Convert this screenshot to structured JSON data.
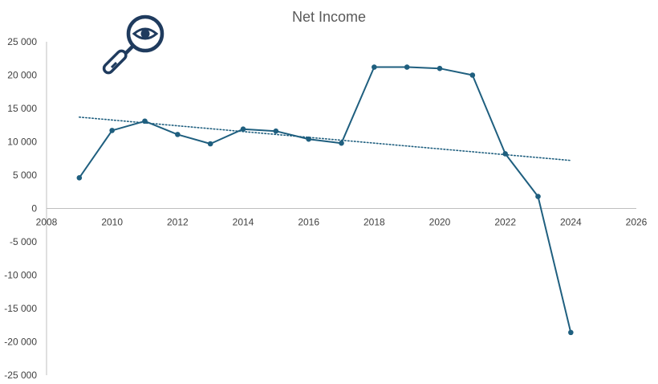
{
  "chart_data": {
    "type": "scatter",
    "title": "Net Income",
    "xlabel": "",
    "ylabel": "",
    "xlim": [
      2008,
      2026
    ],
    "ylim": [
      -25000,
      25000
    ],
    "x_ticks": [
      2008,
      2010,
      2012,
      2014,
      2016,
      2018,
      2020,
      2022,
      2024,
      2026
    ],
    "y_ticks": [
      25000,
      20000,
      15000,
      10000,
      5000,
      0,
      -5000,
      -10000,
      -15000,
      -20000,
      -25000
    ],
    "x_tick_labels": [
      "2008",
      "2010",
      "2012",
      "2014",
      "2016",
      "2018",
      "2020",
      "2022",
      "2024",
      "2026"
    ],
    "y_tick_labels": [
      "25 000",
      "20 000",
      "15 000",
      "10 000",
      "5 000",
      "0",
      "-5 000",
      "-10 000",
      "-15 000",
      "-20 000",
      "-25 000"
    ],
    "grid": false,
    "legend": "none",
    "series": [
      {
        "x": [
          2009,
          2010,
          2011,
          2012,
          2013,
          2014,
          2015,
          2016,
          2017,
          2018,
          2019,
          2020,
          2021,
          2022,
          2023,
          2024
        ],
        "y": [
          4600,
          11700,
          13100,
          11100,
          9700,
          11900,
          11600,
          10400,
          9800,
          21200,
          21200,
          21000,
          20000,
          8200,
          1800,
          -18600
        ],
        "color": "#1f5f7f",
        "style": "line-markers"
      }
    ],
    "trendline": {
      "type": "linear",
      "x": [
        2009,
        2024
      ],
      "y": [
        13700,
        7200
      ],
      "color": "#1f5f7f",
      "style": "dotted"
    }
  },
  "decoration": {
    "icon": "magnifier-eye-icon",
    "color": "#1f3b5e"
  }
}
